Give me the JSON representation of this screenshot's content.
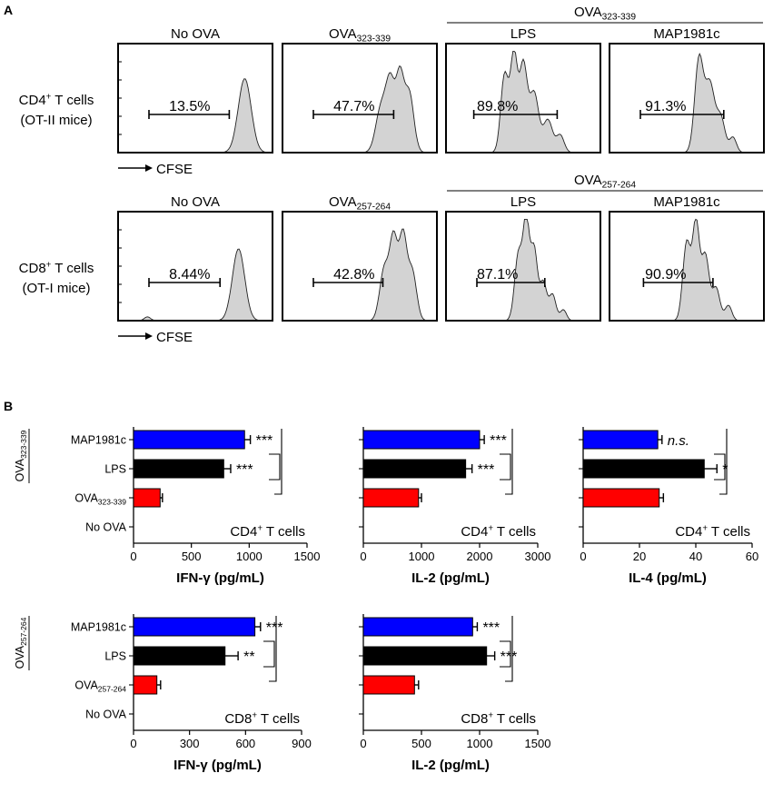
{
  "figure": {
    "panel_a_label": "A",
    "panel_b_label": "B",
    "ova323_group_label": "OVA323-339",
    "ova257_group_label": "OVA257-264",
    "cfse_label": "CFSE",
    "cd4_row_label": [
      "CD4+ T cells",
      "(OT-II mice)"
    ],
    "cd8_row_label": [
      "CD8+ T cells",
      "(OT-I mice)"
    ],
    "flow_headers_cd4": [
      "No OVA",
      "OVA323-339",
      "LPS",
      "MAP1981c"
    ],
    "flow_headers_cd8": [
      "No OVA",
      "OVA257-264",
      "LPS",
      "MAP1981c"
    ],
    "bar_colors": {
      "MAP1981c": "#0000ff",
      "LPS": "#000000",
      "OVA": "#ff0000"
    }
  },
  "chart_data": [
    {
      "type": "histogram",
      "title": "CD4+ T cells (OT-II mice) - CFSE proliferation",
      "panels": [
        "No OVA",
        "OVA323-339",
        "LPS",
        "MAP1981c"
      ],
      "gate_percent": [
        "13.5%",
        "47.7%",
        "89.8%",
        "91.3%"
      ],
      "xlabel": "CFSE"
    },
    {
      "type": "histogram",
      "title": "CD8+ T cells (OT-I mice) - CFSE proliferation",
      "panels": [
        "No OVA",
        "OVA257-264",
        "LPS",
        "MAP1981c"
      ],
      "gate_percent": [
        "8.44%",
        "42.8%",
        "87.1%",
        "90.9%"
      ],
      "xlabel": "CFSE"
    },
    {
      "type": "bar",
      "orientation": "horizontal",
      "categories": [
        "MAP1981c",
        "LPS",
        "OVA323-339",
        "No OVA"
      ],
      "values": [
        960,
        780,
        230,
        0
      ],
      "errors": [
        50,
        60,
        20,
        0
      ],
      "significance": [
        "***",
        "***",
        "",
        ""
      ],
      "panel_label": "CD4+ T cells",
      "xlabel": "IFN-γ (pg/mL)",
      "xlim": [
        0,
        1500
      ],
      "xticks": [
        0,
        500,
        1000,
        1500
      ]
    },
    {
      "type": "bar",
      "orientation": "horizontal",
      "categories": [
        "MAP1981c",
        "LPS",
        "OVA323-339",
        "No OVA"
      ],
      "values": [
        2000,
        1760,
        950,
        0
      ],
      "errors": [
        80,
        110,
        50,
        0
      ],
      "significance": [
        "***",
        "***",
        "",
        ""
      ],
      "panel_label": "CD4+ T cells",
      "xlabel": "IL-2 (pg/mL)",
      "xlim": [
        0,
        3000
      ],
      "xticks": [
        0,
        1000,
        2000,
        3000
      ]
    },
    {
      "type": "bar",
      "orientation": "horizontal",
      "categories": [
        "MAP1981c",
        "LPS",
        "OVA323-339",
        "No OVA"
      ],
      "values": [
        26.5,
        43,
        27,
        0
      ],
      "errors": [
        1.5,
        4.5,
        1.5,
        0
      ],
      "significance": [
        "n.s.",
        "*",
        "",
        ""
      ],
      "panel_label": "CD4+ T cells",
      "xlabel": "IL-4 (pg/mL)",
      "xlim": [
        0,
        60
      ],
      "xticks": [
        0,
        20,
        40,
        60
      ]
    },
    {
      "type": "bar",
      "orientation": "horizontal",
      "categories": [
        "MAP1981c",
        "LPS",
        "OVA257-264",
        "No OVA"
      ],
      "values": [
        650,
        490,
        125,
        0
      ],
      "errors": [
        30,
        70,
        20,
        0
      ],
      "significance": [
        "***",
        "**",
        "",
        ""
      ],
      "panel_label": "CD8+ T cells",
      "xlabel": "IFN-γ (pg/mL)",
      "xlim": [
        0,
        900
      ],
      "xticks": [
        0,
        300,
        600,
        900
      ]
    },
    {
      "type": "bar",
      "orientation": "horizontal",
      "categories": [
        "MAP1981c",
        "LPS",
        "OVA257-264",
        "No OVA"
      ],
      "values": [
        940,
        1060,
        440,
        0
      ],
      "errors": [
        40,
        70,
        35,
        0
      ],
      "significance": [
        "***",
        "***",
        "",
        ""
      ],
      "panel_label": "CD8+ T cells",
      "xlabel": "IL-2 (pg/mL)",
      "xlim": [
        0,
        1500
      ],
      "xticks": [
        0,
        500,
        1000,
        1500
      ]
    }
  ]
}
